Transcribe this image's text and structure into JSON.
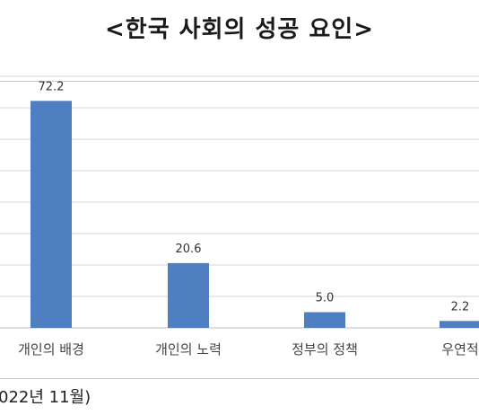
{
  "title": "<한국 사회의 성공 요인>",
  "footnote": "022년 11월)",
  "chart_data": {
    "type": "bar",
    "categories": [
      "개인의 배경",
      "개인의 노력",
      "정부의 정책",
      "우연적"
    ],
    "values": [
      72.2,
      20.6,
      5.0,
      2.2
    ],
    "value_labels": [
      "72.2",
      "20.6",
      "5.0",
      "2.2"
    ],
    "ylim": [
      0,
      80
    ],
    "grid": true,
    "bar_color": "#4f7fc0"
  }
}
